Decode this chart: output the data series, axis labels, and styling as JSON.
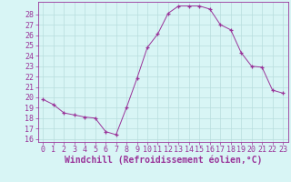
{
  "x": [
    0,
    1,
    2,
    3,
    4,
    5,
    6,
    7,
    8,
    9,
    10,
    11,
    12,
    13,
    14,
    15,
    16,
    17,
    18,
    19,
    20,
    21,
    22,
    23
  ],
  "y": [
    19.8,
    19.3,
    18.5,
    18.3,
    18.1,
    18.0,
    16.7,
    16.4,
    19.0,
    21.8,
    24.8,
    26.1,
    28.1,
    28.8,
    28.8,
    28.8,
    28.5,
    27.0,
    26.5,
    24.3,
    23.0,
    22.9,
    20.7,
    20.4
  ],
  "xlim": [
    -0.5,
    23.5
  ],
  "ylim": [
    15.7,
    29.2
  ],
  "yticks": [
    16,
    17,
    18,
    19,
    20,
    21,
    22,
    23,
    24,
    25,
    26,
    27,
    28
  ],
  "xticks": [
    0,
    1,
    2,
    3,
    4,
    5,
    6,
    7,
    8,
    9,
    10,
    11,
    12,
    13,
    14,
    15,
    16,
    17,
    18,
    19,
    20,
    21,
    22,
    23
  ],
  "xlabel": "Windchill (Refroidissement éolien,°C)",
  "line_color": "#993399",
  "marker": "+",
  "bg_color": "#d8f5f5",
  "grid_color": "#b8dede",
  "tick_color": "#993399",
  "label_color": "#993399",
  "tick_fontsize": 6.0,
  "xlabel_fontsize": 7.0
}
